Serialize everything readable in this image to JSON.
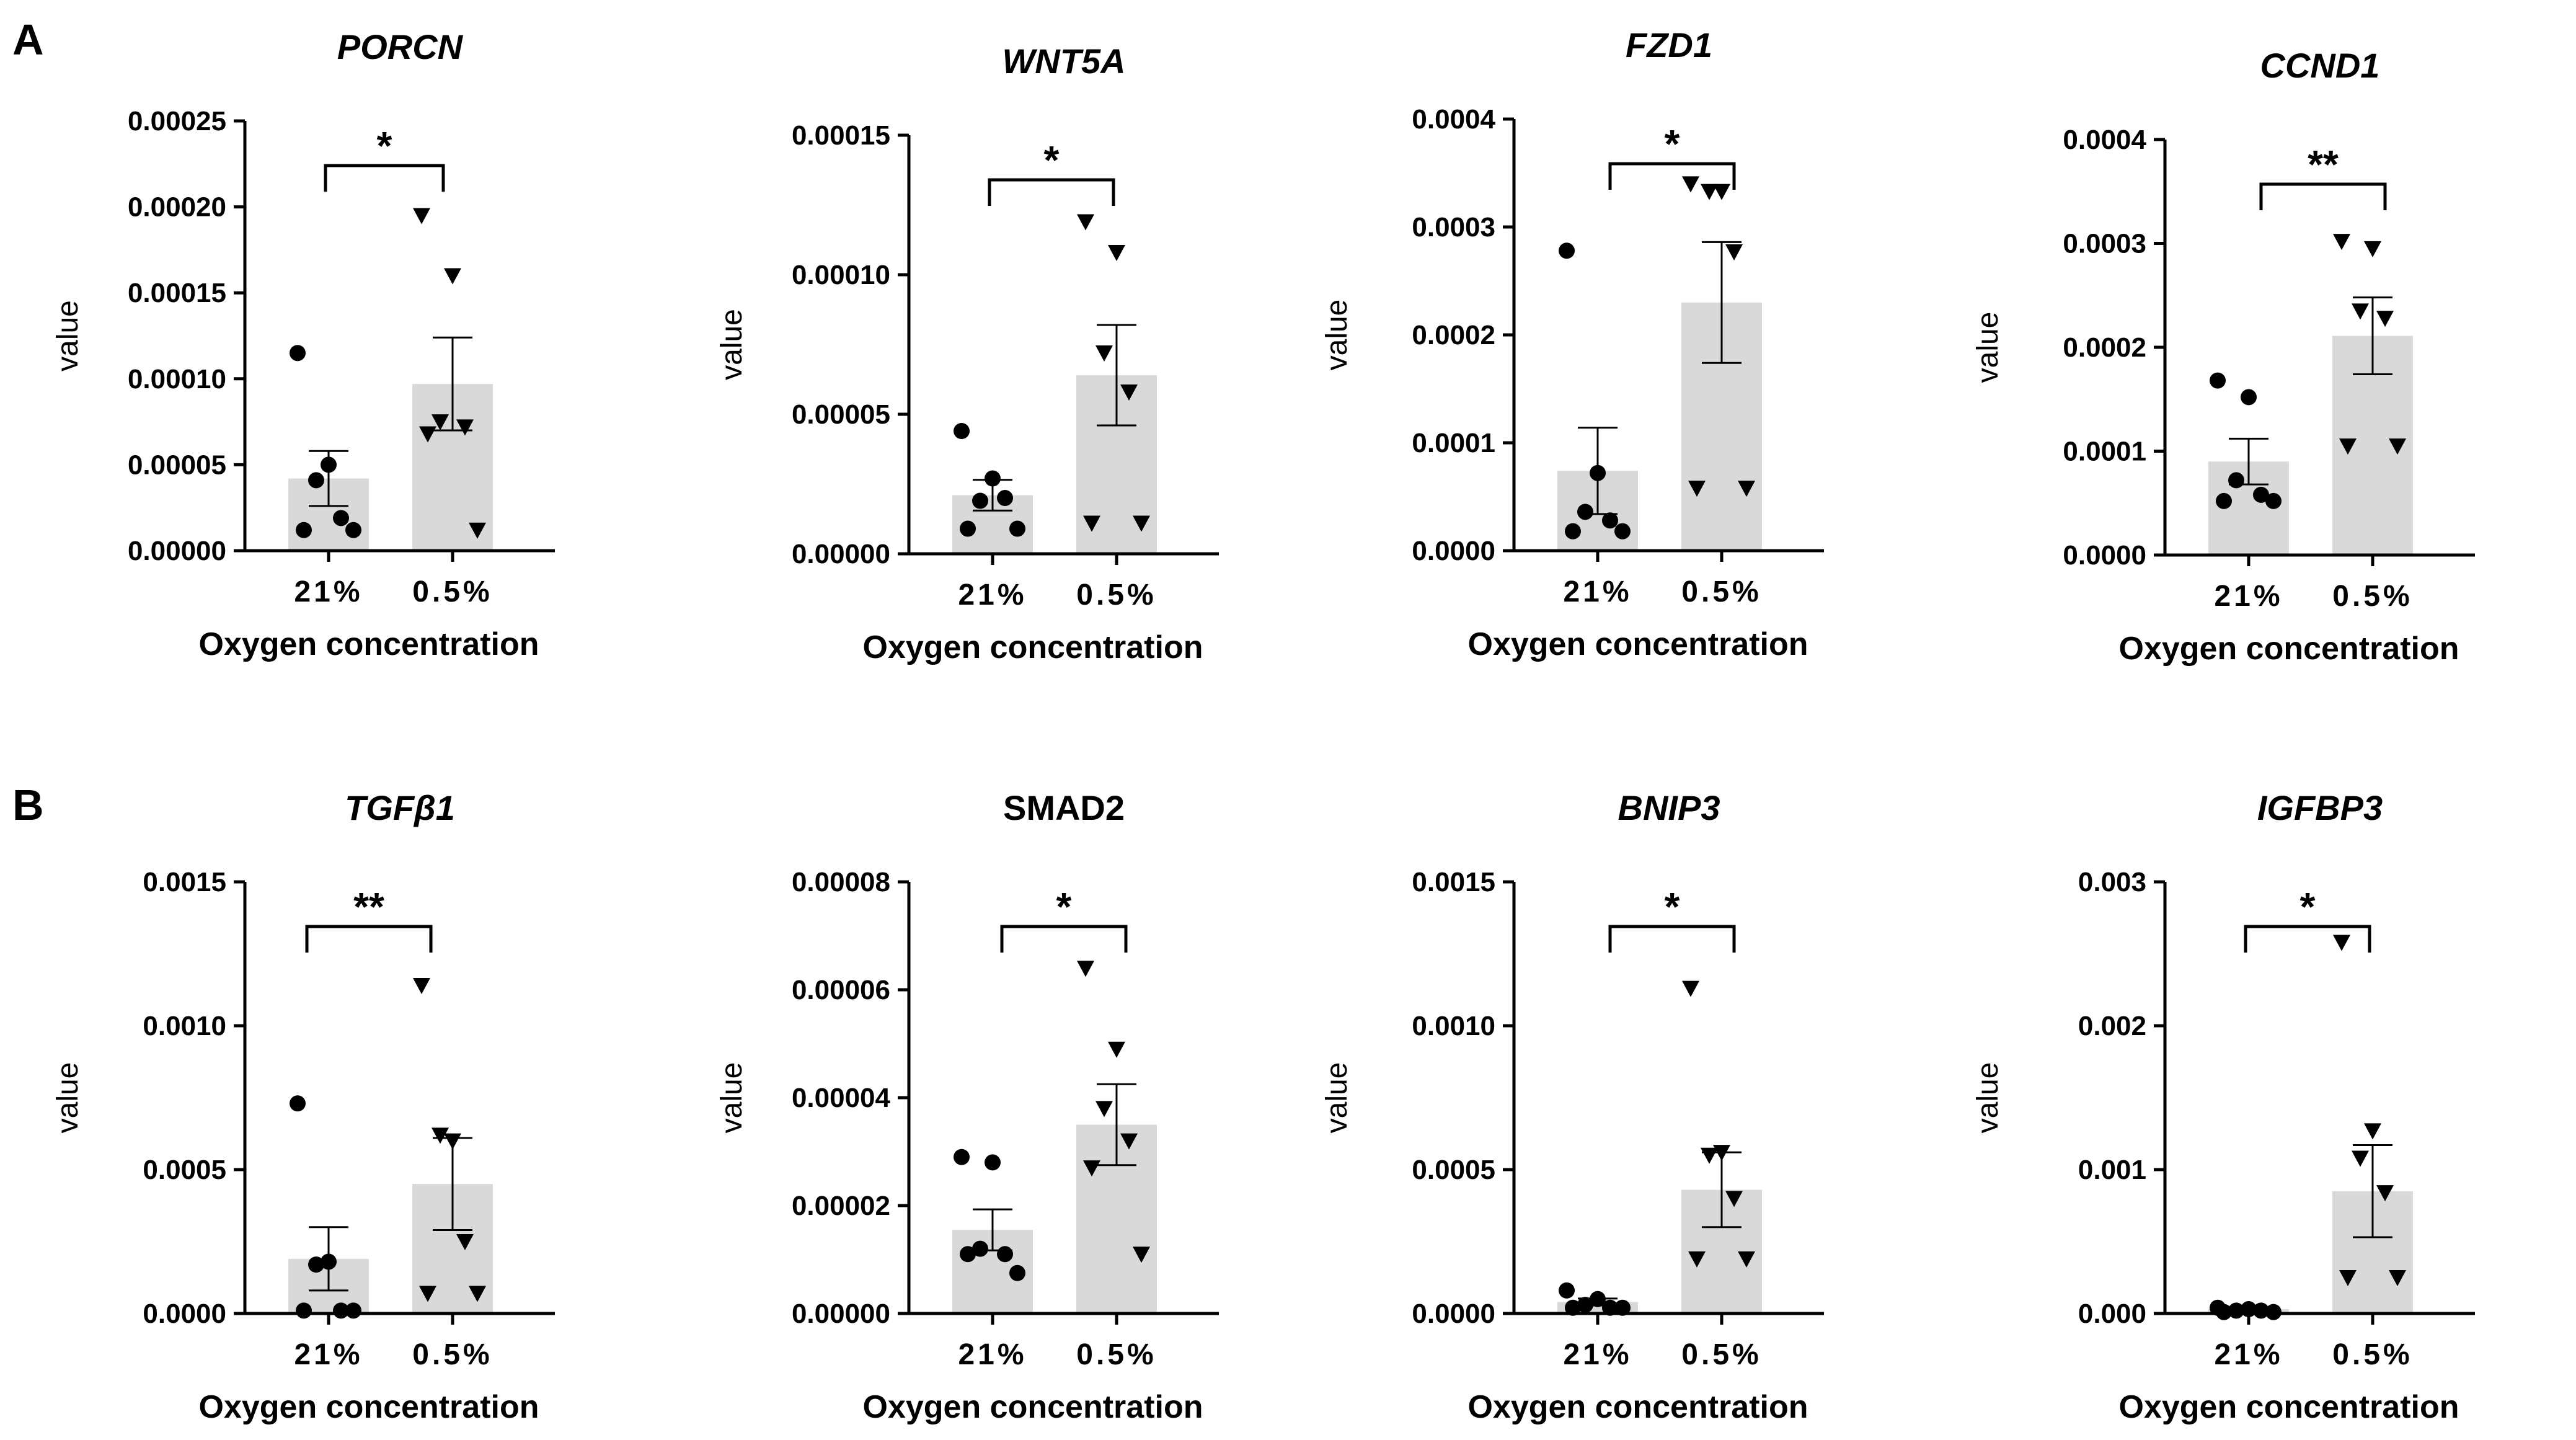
{
  "panel_labels": [
    "A",
    "B"
  ],
  "colors": {
    "bar": "#d9d9d9",
    "axis": "#000000",
    "points": "#000000"
  },
  "chart_data": [
    {
      "type": "bar",
      "panel": "A",
      "title": "PORCN",
      "italic": true,
      "xlabel": "Oxygen concentration",
      "ylabel": "value",
      "categories": [
        "21%",
        "0.5%"
      ],
      "yticks": [
        "0.00000",
        "0.00005",
        "0.00010",
        "0.00015",
        "0.00020",
        "0.00025"
      ],
      "ylim": [
        0,
        0.00025
      ],
      "means": [
        4.2e-05,
        9.7e-05
      ],
      "sem": [
        1.6e-05,
        2.7e-05
      ],
      "points": [
        [
          0.000115,
          5e-05,
          4.1e-05,
          1.9e-05,
          1.2e-05,
          1.2e-05
        ],
        [
          0.000195,
          0.00016,
          7.5e-05,
          7.2e-05,
          6.8e-05,
          1.2e-05
        ]
      ],
      "markers": [
        "circle",
        "triangle"
      ],
      "significance": "*"
    },
    {
      "type": "bar",
      "panel": "A",
      "title": "WNT5A",
      "italic": true,
      "xlabel": "Oxygen concentration",
      "ylabel": "value",
      "categories": [
        "21%",
        "0.5%"
      ],
      "yticks": [
        "0.00000",
        "0.00005",
        "0.00010",
        "0.00015"
      ],
      "ylim": [
        0,
        0.00015
      ],
      "means": [
        2.1e-05,
        6.4e-05
      ],
      "sem": [
        5.5e-06,
        1.8e-05
      ],
      "points": [
        [
          4.4e-05,
          2.7e-05,
          1.9e-05,
          2e-05,
          9e-06,
          9e-06
        ],
        [
          0.000119,
          0.000108,
          7.2e-05,
          5.8e-05,
          1.1e-05,
          1.1e-05
        ]
      ],
      "markers": [
        "circle",
        "triangle"
      ],
      "significance": "*"
    },
    {
      "type": "bar",
      "panel": "A",
      "title": "FZD1",
      "italic": true,
      "xlabel": "Oxygen concentration",
      "ylabel": "value",
      "categories": [
        "21%",
        "0.5%"
      ],
      "yticks": [
        "0.0000",
        "0.0001",
        "0.0002",
        "0.0003",
        "0.0004"
      ],
      "ylim": [
        0,
        0.0004
      ],
      "means": [
        7.4e-05,
        0.00023
      ],
      "sem": [
        4e-05,
        5.6e-05
      ],
      "points": [
        [
          0.000278,
          7.2e-05,
          3.6e-05,
          2.8e-05,
          1.8e-05,
          1.8e-05
        ],
        [
          0.00034,
          0.000333,
          0.000333,
          0.000277,
          5.8e-05,
          5.8e-05
        ]
      ],
      "markers": [
        "circle",
        "triangle"
      ],
      "significance": "*"
    },
    {
      "type": "bar",
      "panel": "A",
      "title": "CCND1",
      "italic": true,
      "xlabel": "Oxygen concentration",
      "ylabel": "value",
      "categories": [
        "21%",
        "0.5%"
      ],
      "yticks": [
        "0.0000",
        "0.0001",
        "0.0002",
        "0.0003",
        "0.0004"
      ],
      "ylim": [
        0,
        0.0004
      ],
      "means": [
        9e-05,
        0.000211
      ],
      "sem": [
        2.2e-05,
        3.7e-05
      ],
      "points": [
        [
          0.000168,
          0.000152,
          7.2e-05,
          5.8e-05,
          5.2e-05,
          5.2e-05
        ],
        [
          0.000302,
          0.000295,
          0.000235,
          0.000228,
          0.000105,
          0.000105
        ]
      ],
      "markers": [
        "circle",
        "triangle"
      ],
      "significance": "**"
    },
    {
      "type": "bar",
      "panel": "B",
      "title": "TGFβ1",
      "italic": true,
      "xlabel": "Oxygen concentration",
      "ylabel": "value",
      "categories": [
        "21%",
        "0.5%"
      ],
      "yticks": [
        "0.0000",
        "0.0005",
        "0.0010",
        "0.0015"
      ],
      "ylim": [
        0,
        0.0015
      ],
      "means": [
        0.00019,
        0.00045
      ],
      "sem": [
        0.00011,
        0.00016
      ],
      "points": [
        [
          0.00073,
          0.00018,
          0.00017,
          1e-05,
          1e-05,
          1e-05
        ],
        [
          0.00114,
          0.0006,
          0.00062,
          0.00025,
          7e-05,
          7e-05
        ]
      ],
      "markers": [
        "circle",
        "triangle"
      ],
      "significance": "**"
    },
    {
      "type": "bar",
      "panel": "B",
      "title": "SMAD2",
      "italic": false,
      "xlabel": "Oxygen concentration",
      "ylabel": "value",
      "categories": [
        "21%",
        "0.5%"
      ],
      "yticks": [
        "0.00000",
        "0.00002",
        "0.00004",
        "0.00006",
        "0.00008"
      ],
      "ylim": [
        0,
        8e-05
      ],
      "means": [
        1.55e-05,
        3.5e-05
      ],
      "sem": [
        3.8e-06,
        7.5e-06
      ],
      "points": [
        [
          2.9e-05,
          2.8e-05,
          1.2e-05,
          1.1e-05,
          1.1e-05,
          7.5e-06
        ],
        [
          6.4e-05,
          4.9e-05,
          3.8e-05,
          3.2e-05,
          2.7e-05,
          1.1e-05
        ]
      ],
      "markers": [
        "circle",
        "triangle"
      ],
      "significance": "*"
    },
    {
      "type": "bar",
      "panel": "B",
      "title": "BNIP3",
      "italic": true,
      "xlabel": "Oxygen concentration",
      "ylabel": "value",
      "categories": [
        "21%",
        "0.5%"
      ],
      "yticks": [
        "0.0000",
        "0.0005",
        "0.0010",
        "0.0015"
      ],
      "ylim": [
        0,
        0.0015
      ],
      "means": [
        4e-05,
        0.00043
      ],
      "sem": [
        1.2e-05,
        0.00013
      ],
      "points": [
        [
          8e-05,
          5e-05,
          3e-05,
          2e-05,
          2e-05,
          2e-05
        ],
        [
          0.00113,
          0.00056,
          0.00055,
          0.0004,
          0.00019,
          0.00019
        ]
      ],
      "markers": [
        "circle",
        "triangle"
      ],
      "significance": "*"
    },
    {
      "type": "bar",
      "panel": "B",
      "title": "IGFBP3",
      "italic": true,
      "xlabel": "Oxygen concentration",
      "ylabel": "value",
      "categories": [
        "21%",
        "0.5%"
      ],
      "yticks": [
        "0.000",
        "0.001",
        "0.002",
        "0.003"
      ],
      "ylim": [
        0,
        0.003
      ],
      "means": [
        3e-05,
        0.00085
      ],
      "sem": [
        1e-05,
        0.00032
      ],
      "points": [
        [
          4e-05,
          3e-05,
          2e-05,
          2e-05,
          1e-05,
          1e-05
        ],
        [
          0.00258,
          0.00127,
          0.00108,
          0.00084,
          0.00025,
          0.00025
        ]
      ],
      "markers": [
        "circle",
        "triangle"
      ],
      "significance": "*"
    }
  ]
}
